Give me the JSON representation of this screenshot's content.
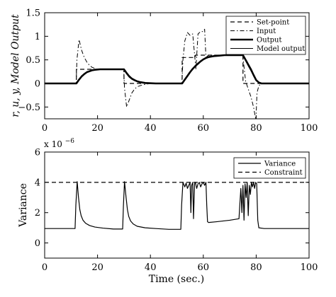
{
  "chart_data": [
    {
      "type": "line",
      "ylabel": "r, u, y, Model Output",
      "xlim": [
        0,
        100
      ],
      "ylim": [
        -0.75,
        1.5
      ],
      "xticks": [
        0,
        20,
        40,
        60,
        80,
        100
      ],
      "yticks": [
        -0.5,
        0,
        0.5,
        1,
        1.5
      ],
      "ytick_labels": [
        "−0.5",
        "0",
        "0.5",
        "1",
        "1.5"
      ],
      "legend_position": "top-right",
      "series": [
        {
          "name": "Set-point",
          "style": "dashed",
          "x": [
            0,
            12,
            12.01,
            30,
            30.01,
            52,
            52.01,
            57,
            57.01,
            75,
            75.01,
            80,
            80.01,
            100
          ],
          "y": [
            0,
            0,
            0.3,
            0.3,
            0,
            0,
            0.55,
            0.55,
            0.6,
            0.6,
            0,
            0,
            0,
            0
          ]
        },
        {
          "name": "Input",
          "style": "dashdot",
          "x": [
            0,
            11.9,
            12.2,
            13,
            14,
            15,
            16,
            17,
            18,
            19,
            20,
            22,
            25,
            28,
            29.9,
            30.2,
            31,
            32,
            33,
            34,
            35,
            37,
            40,
            45,
            50,
            51.9,
            52.3,
            53,
            54,
            55,
            56,
            57.2,
            58,
            59,
            60,
            60.5,
            61,
            62,
            64,
            66,
            68,
            70,
            72,
            74.9,
            75.3,
            76,
            77,
            78,
            79,
            79.9,
            80.3,
            81,
            82,
            84,
            88,
            92,
            96,
            100
          ],
          "y": [
            0,
            0,
            0.5,
            0.93,
            0.7,
            0.55,
            0.45,
            0.38,
            0.34,
            0.32,
            0.3,
            0.3,
            0.3,
            0.3,
            0.3,
            -0.1,
            -0.5,
            -0.35,
            -0.2,
            -0.12,
            -0.07,
            -0.03,
            0,
            0,
            0,
            0,
            0.5,
            0.9,
            1.08,
            1.02,
            1.05,
            0.3,
            1.05,
            1.1,
            1.1,
            1.15,
            0.55,
            0.6,
            0.6,
            0.6,
            0.6,
            0.6,
            0.6,
            0.6,
            0.4,
            0.05,
            -0.12,
            -0.28,
            -0.5,
            -0.78,
            -0.2,
            -0.05,
            0,
            0,
            0,
            0,
            0,
            0
          ]
        },
        {
          "name": "Output",
          "style": "solid-thick",
          "x": [
            0,
            12,
            13,
            14,
            15,
            16,
            17,
            18,
            19,
            20,
            21,
            22,
            24,
            26,
            28,
            30,
            31,
            32,
            33,
            34,
            35,
            36,
            37,
            38,
            40,
            42,
            45,
            50,
            52,
            53,
            54,
            55,
            56,
            57,
            58,
            59,
            60,
            61,
            62,
            63,
            64,
            66,
            68,
            70,
            72,
            74,
            75,
            76,
            77,
            78,
            79,
            80,
            81,
            82,
            84,
            86,
            90,
            95,
            100
          ],
          "y": [
            0,
            0,
            0.08,
            0.15,
            0.2,
            0.24,
            0.26,
            0.28,
            0.29,
            0.295,
            0.3,
            0.3,
            0.3,
            0.3,
            0.3,
            0.3,
            0.22,
            0.15,
            0.1,
            0.07,
            0.045,
            0.03,
            0.02,
            0.01,
            0.005,
            0,
            0,
            0,
            0,
            0.08,
            0.16,
            0.24,
            0.31,
            0.37,
            0.42,
            0.47,
            0.51,
            0.54,
            0.56,
            0.57,
            0.58,
            0.59,
            0.6,
            0.6,
            0.6,
            0.6,
            0.6,
            0.5,
            0.4,
            0.3,
            0.18,
            0.07,
            0.02,
            0,
            0,
            0,
            0,
            0,
            0
          ]
        },
        {
          "name": "Model output",
          "style": "solid-thin",
          "x": [
            0,
            12,
            13,
            14,
            15,
            16,
            17,
            18,
            19,
            20,
            21,
            22,
            24,
            26,
            28,
            30,
            31,
            32,
            33,
            34,
            35,
            36,
            37,
            38,
            40,
            42,
            45,
            50,
            52,
            53,
            54,
            55,
            56,
            57,
            58,
            59,
            60,
            61,
            62,
            63,
            64,
            66,
            68,
            70,
            72,
            74,
            75,
            76,
            77,
            78,
            79,
            80,
            81,
            82,
            84,
            86,
            90,
            95,
            100
          ],
          "y": [
            0,
            0,
            0.09,
            0.16,
            0.21,
            0.24,
            0.26,
            0.28,
            0.29,
            0.295,
            0.3,
            0.3,
            0.3,
            0.3,
            0.3,
            0.3,
            0.2,
            0.13,
            0.09,
            0.06,
            0.04,
            0.025,
            0.015,
            0.01,
            0.005,
            0,
            0,
            0,
            0,
            0.09,
            0.17,
            0.25,
            0.32,
            0.38,
            0.43,
            0.47,
            0.51,
            0.54,
            0.56,
            0.57,
            0.58,
            0.59,
            0.6,
            0.6,
            0.6,
            0.6,
            0.6,
            0.48,
            0.37,
            0.27,
            0.16,
            0.06,
            0.02,
            0,
            0,
            0,
            0,
            0,
            0
          ]
        }
      ]
    },
    {
      "type": "line",
      "xlabel": "Time (sec.)",
      "ylabel": "Variance",
      "y_exponent_label": "x 10",
      "y_exponent_power": "−6",
      "xlim": [
        0,
        100
      ],
      "ylim": [
        -1,
        6
      ],
      "xticks": [
        0,
        20,
        40,
        60,
        80,
        100
      ],
      "yticks": [
        0,
        2,
        4,
        6
      ],
      "legend_position": "top-right",
      "series": [
        {
          "name": "Variance",
          "style": "solid",
          "x": [
            0,
            11.5,
            11.8,
            12.3,
            12.8,
            13.3,
            13.8,
            14.5,
            15.5,
            17,
            19,
            22,
            26,
            29.5,
            29.8,
            30.2,
            30.8,
            31.3,
            31.8,
            32.5,
            33.5,
            35,
            38,
            42,
            47,
            51.5,
            51.8,
            52.3,
            53,
            53.5,
            54,
            54.5,
            55,
            55.3,
            55.6,
            56,
            56.3,
            56.7,
            57,
            57.5,
            58,
            58.5,
            59,
            59.5,
            60,
            60.5,
            61,
            61.3,
            61.6,
            62,
            65,
            70,
            73.5,
            73.8,
            74.2,
            74.6,
            75,
            75.4,
            75.8,
            76.2,
            76.6,
            77,
            77.4,
            77.8,
            78.2,
            78.6,
            79,
            79.4,
            79.8,
            80.2,
            80.6,
            81,
            83,
            87,
            92,
            100
          ],
          "y": [
            0.95,
            0.95,
            2.5,
            4.05,
            3.0,
            2.2,
            1.8,
            1.5,
            1.3,
            1.15,
            1.05,
            0.98,
            0.92,
            0.92,
            2.5,
            4.05,
            3.0,
            2.2,
            1.75,
            1.45,
            1.25,
            1.1,
            1.0,
            0.95,
            0.9,
            0.9,
            2.5,
            4.0,
            3.7,
            3.95,
            3.6,
            3.8,
            4.0,
            2.0,
            3.8,
            4.0,
            1.6,
            3.9,
            4.0,
            3.6,
            3.9,
            4.0,
            3.7,
            3.9,
            4.0,
            3.8,
            4.0,
            2.5,
            1.4,
            1.35,
            1.4,
            1.5,
            1.6,
            2.5,
            3.6,
            2.0,
            3.8,
            1.5,
            3.9,
            3.0,
            4.0,
            1.8,
            3.8,
            3.2,
            4.0,
            3.7,
            4.0,
            3.6,
            4.0,
            3.9,
            1.5,
            1.0,
            0.95,
            0.95,
            0.95,
            0.95
          ]
        },
        {
          "name": "Constraint",
          "style": "dashed",
          "x": [
            0,
            100
          ],
          "y": [
            4,
            4
          ]
        }
      ]
    }
  ]
}
